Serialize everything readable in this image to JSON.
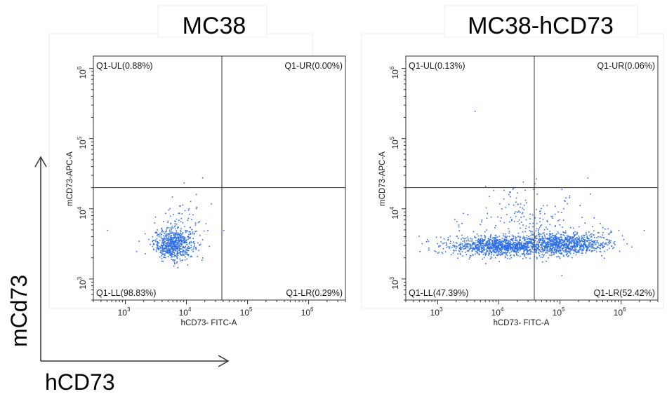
{
  "figure": {
    "outer_y_label": "mCd73",
    "outer_x_label": "hCD73"
  },
  "chart_data": [
    {
      "type": "scatter",
      "title": "MC38",
      "xlabel": "hCD73- FITC-A",
      "ylabel": "mCD73-APC-A",
      "x_scale": "log",
      "y_scale": "log",
      "xlim": [
        300,
        4000000
      ],
      "ylim": [
        500,
        1500000
      ],
      "x_ticks": [
        {
          "base": "10",
          "exp": "3"
        },
        {
          "base": "10",
          "exp": "4"
        },
        {
          "base": "10",
          "exp": "5"
        },
        {
          "base": "10",
          "exp": "6"
        }
      ],
      "y_ticks": [
        {
          "base": "10",
          "exp": "3"
        },
        {
          "base": "10",
          "exp": "4"
        },
        {
          "base": "10",
          "exp": "5"
        },
        {
          "base": "10",
          "exp": "6"
        }
      ],
      "quadrant_gate": {
        "x": 38000,
        "y": 20000
      },
      "quadrants": {
        "UL": "Q1-UL(0.88%)",
        "UR": "Q1-UR(0.00%)",
        "LL": "Q1-LL(98.83%)",
        "LR": "Q1-LR(0.29%)"
      },
      "point_color": "#2f6fe8",
      "clusters": [
        {
          "center_x": 6000,
          "center_y": 3200,
          "spread_x_log10": 0.16,
          "spread_y_log10": 0.11,
          "count": 650
        },
        {
          "center_x": 9000,
          "center_y": 5500,
          "spread_x_log10": 0.22,
          "spread_y_log10": 0.2,
          "count": 90
        }
      ],
      "outliers": [
        [
          500,
          5000
        ],
        [
          18000,
          28000
        ],
        [
          25000,
          12000
        ],
        [
          40000,
          5000
        ],
        [
          1500,
          2500
        ]
      ]
    },
    {
      "type": "scatter",
      "title": "MC38-hCD73",
      "xlabel": "hCD73- FITC-A",
      "ylabel": "mCD73-APC-A",
      "x_scale": "log",
      "y_scale": "log",
      "xlim": [
        300,
        4000000
      ],
      "ylim": [
        500,
        1500000
      ],
      "x_ticks": [
        {
          "base": "10",
          "exp": "3"
        },
        {
          "base": "10",
          "exp": "4"
        },
        {
          "base": "10",
          "exp": "5"
        },
        {
          "base": "10",
          "exp": "6"
        }
      ],
      "y_ticks": [
        {
          "base": "10",
          "exp": "3"
        },
        {
          "base": "10",
          "exp": "4"
        },
        {
          "base": "10",
          "exp": "5"
        },
        {
          "base": "10",
          "exp": "6"
        }
      ],
      "quadrant_gate": {
        "x": 38000,
        "y": 20000
      },
      "quadrants": {
        "UL": "Q1-UL(0.13%)",
        "UR": "Q1-UR(0.06%)",
        "LL": "Q1-LL(47.39%)",
        "LR": "Q1-LR(52.42%)"
      },
      "point_color": "#2f6fe8",
      "clusters": [
        {
          "center_x": 10000,
          "center_y": 3000,
          "spread_x_log10": 0.42,
          "spread_y_log10": 0.07,
          "count": 1100
        },
        {
          "center_x": 120000,
          "center_y": 3200,
          "spread_x_log10": 0.35,
          "spread_y_log10": 0.08,
          "count": 900
        },
        {
          "center_x": 30000,
          "center_y": 6000,
          "spread_x_log10": 0.55,
          "spread_y_log10": 0.25,
          "count": 220
        }
      ],
      "outliers": [
        [
          4000,
          250000
        ],
        [
          500,
          2500
        ],
        [
          700,
          2800
        ],
        [
          900000,
          5000
        ],
        [
          280000,
          28000
        ]
      ]
    }
  ]
}
